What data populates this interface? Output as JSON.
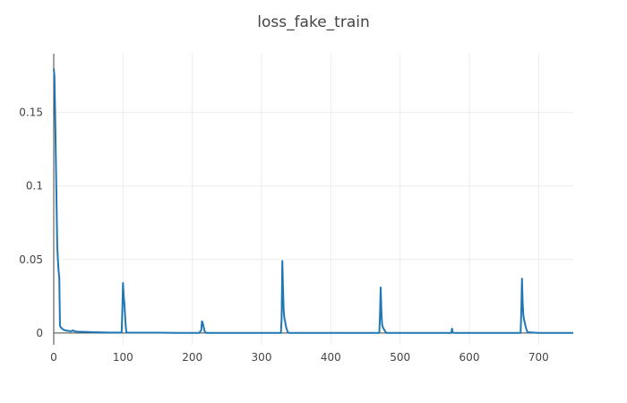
{
  "chart_data": {
    "type": "line",
    "title": "loss_fake_train",
    "xlabel": "",
    "ylabel": "",
    "xlim": [
      0,
      750
    ],
    "ylim": [
      -0.008,
      0.19
    ],
    "grid": true,
    "x_ticks": [
      0,
      100,
      200,
      300,
      400,
      500,
      600,
      700
    ],
    "x_tick_labels": [
      "0",
      "100",
      "200",
      "300",
      "400",
      "500",
      "600",
      "700"
    ],
    "y_ticks": [
      0,
      0.05,
      0.1,
      0.15
    ],
    "y_tick_labels": [
      "0",
      "0.05",
      "0.1",
      "0.15"
    ],
    "series": [
      {
        "color": "#1f77b4",
        "x": [
          0,
          1,
          2,
          3,
          4,
          5,
          6,
          7,
          8,
          9,
          10,
          12,
          15,
          20,
          25,
          28,
          30,
          32,
          40,
          60,
          80,
          98,
          99,
          100,
          101,
          102,
          103,
          104,
          105,
          120,
          150,
          180,
          200,
          210,
          213,
          214,
          215,
          216,
          218,
          220,
          250,
          300,
          328,
          329,
          330,
          331,
          332,
          333,
          334,
          335,
          336,
          338,
          340,
          360,
          400,
          440,
          470,
          471,
          472,
          473,
          474,
          475,
          478,
          480,
          500,
          540,
          574,
          575,
          576,
          578,
          600,
          640,
          674,
          675,
          676,
          677,
          678,
          679,
          680,
          682,
          684,
          700,
          750
        ],
        "y": [
          0.18,
          0.175,
          0.15,
          0.12,
          0.09,
          0.06,
          0.05,
          0.042,
          0.038,
          0.005,
          0.004,
          0.003,
          0.002,
          0.0015,
          0.0012,
          0.0018,
          0.0012,
          0.001,
          0.0008,
          0.0005,
          0.0003,
          0.0003,
          0.015,
          0.034,
          0.025,
          0.02,
          0.012,
          0.004,
          0.0002,
          0.0002,
          0.0002,
          0.0001,
          0.0001,
          0.0001,
          0.002,
          0.008,
          0.007,
          0.005,
          0.001,
          0.0001,
          0.0001,
          0.0001,
          0.0001,
          0.01,
          0.049,
          0.03,
          0.015,
          0.01,
          0.008,
          0.005,
          0.003,
          0.0005,
          0.0001,
          0.0001,
          0.0001,
          0.0001,
          0.0001,
          0.012,
          0.031,
          0.015,
          0.006,
          0.004,
          0.0015,
          0.0001,
          0.0001,
          0.0001,
          0.0001,
          0.003,
          0.0003,
          0.0001,
          0.0001,
          0.0001,
          0.0001,
          0.015,
          0.037,
          0.02,
          0.012,
          0.009,
          0.007,
          0.003,
          0.0005,
          0.0001,
          0.0001
        ]
      }
    ]
  }
}
